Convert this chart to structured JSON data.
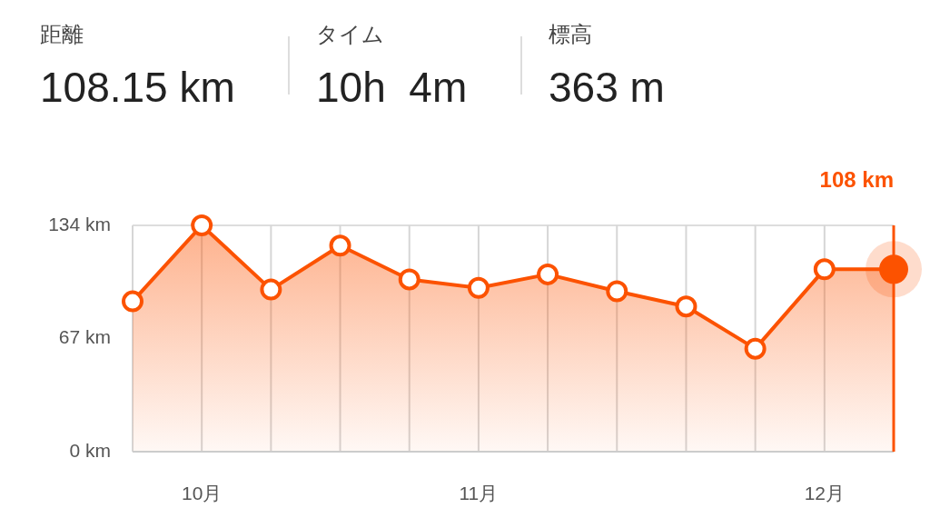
{
  "chart_data": [
    {
      "type": "other",
      "annotations": [
        "距離",
        "108.15 km",
        "タイム",
        "10h  4m",
        "標高",
        "363 m"
      ]
    },
    {
      "type": "area",
      "categories": [
        null,
        "10月",
        null,
        null,
        null,
        "11月",
        null,
        null,
        null,
        null,
        "12月",
        null
      ],
      "values": [
        89,
        134,
        96,
        122,
        102,
        97,
        105,
        95,
        86,
        61,
        108,
        108
      ],
      "color": "#fc5200",
      "ylim": [
        0,
        134
      ],
      "yticks": [
        {
          "value": 0,
          "label": "0 km"
        },
        {
          "value": 67,
          "label": "67 km"
        },
        {
          "value": 134,
          "label": "134 km"
        }
      ],
      "grid": "x",
      "marker": "circle",
      "annotations": [
        "108 km"
      ]
    }
  ]
}
